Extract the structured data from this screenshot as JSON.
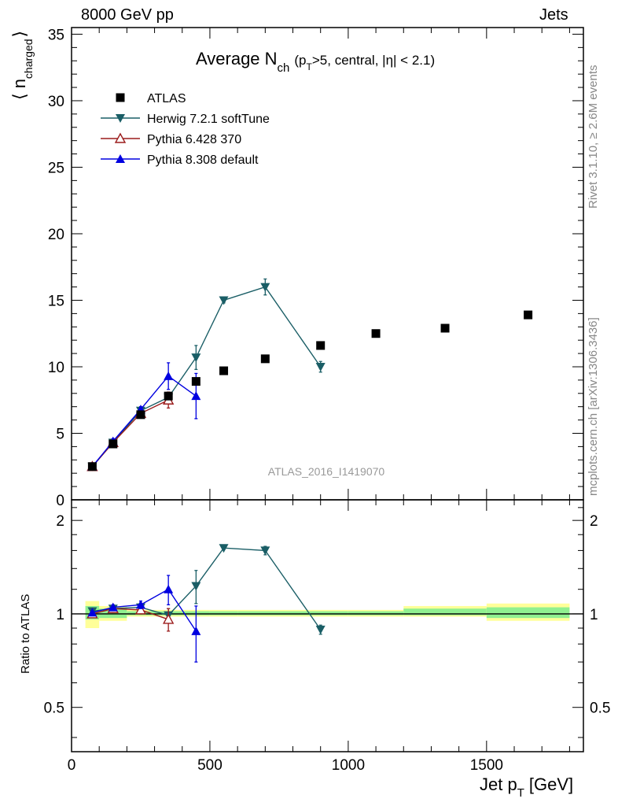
{
  "header": {
    "left": "8000 GeV pp",
    "right": "Jets"
  },
  "side_labels": {
    "rivet": "Rivet 3.1.10, ≥ 2.6M events",
    "mcplots": "mcplots.cern.ch [arXiv:1306.3436]"
  },
  "colors": {
    "data": "#000000",
    "herwig": "#1a5e66",
    "pythia6": "#9b1c1c",
    "pythia8": "#0000e0",
    "band_inner": "#90f090",
    "band_outer": "#ffff99"
  },
  "chart_data": [
    {
      "type": "scatter",
      "panel": "main",
      "title_main": "Average N",
      "title_sub": "ch",
      "title_rest": "(p",
      "title_rest_sub": "T",
      "title_rest2": ">5, central, |η| < 2.1)",
      "ylabel_open": "⟨ n",
      "ylabel_sub": "charged",
      "ylabel_close": "⟩",
      "analysis_label": "ATLAS_2016_I1419070",
      "xlim": [
        0,
        1850
      ],
      "ylim": [
        0,
        35.5
      ],
      "yticks": [
        0,
        5,
        10,
        15,
        20,
        25,
        30,
        35
      ],
      "ytick_labels": [
        "0",
        "5",
        "10",
        "15",
        "20",
        "25",
        "30",
        "35"
      ],
      "legend_position": "top-left",
      "series": [
        {
          "name": "ATLAS",
          "key": "data",
          "marker": "square",
          "x": [
            75,
            150,
            250,
            350,
            450,
            550,
            700,
            900,
            1100,
            1350,
            1650
          ],
          "y": [
            2.5,
            4.2,
            6.4,
            7.8,
            8.9,
            9.7,
            10.6,
            11.6,
            12.5,
            12.9,
            13.9
          ],
          "err": [
            0.1,
            0.1,
            0.1,
            0.1,
            0.1,
            0.1,
            0.1,
            0.1,
            0.1,
            0.1,
            0.1
          ]
        },
        {
          "name": "Herwig 7.2.1 softTune",
          "key": "herwig",
          "marker": "triangle-down",
          "x": [
            75,
            150,
            250,
            350,
            450,
            550,
            700,
            900
          ],
          "y": [
            2.5,
            4.3,
            6.7,
            7.7,
            10.7,
            15.0,
            16.0,
            10.0
          ],
          "err": [
            0.1,
            0.2,
            0.2,
            0.4,
            0.9,
            0.2,
            0.6,
            0.4
          ]
        },
        {
          "name": "Pythia 6.428 370",
          "key": "pythia6",
          "marker": "triangle-up-open",
          "x": [
            75,
            150,
            250,
            350
          ],
          "y": [
            2.5,
            4.3,
            6.5,
            7.5
          ],
          "err": [
            0.1,
            0.2,
            0.2,
            0.6
          ]
        },
        {
          "name": "Pythia 8.308 default",
          "key": "pythia8",
          "marker": "triangle-up",
          "x": [
            75,
            150,
            250,
            350,
            450
          ],
          "y": [
            2.5,
            4.4,
            6.8,
            9.3,
            7.8
          ],
          "err": [
            0.1,
            0.2,
            0.2,
            1.0,
            1.7
          ]
        }
      ]
    },
    {
      "type": "scatter",
      "panel": "ratio",
      "ylabel": "Ratio to ATLAS",
      "xlabel": "Jet p",
      "xlabel_sub": "T",
      "xlabel_unit": "[GeV]",
      "xlim": [
        0,
        1850
      ],
      "ylim": [
        0.36,
        2.33
      ],
      "xticks": [
        0,
        500,
        1000,
        1500
      ],
      "xtick_labels": [
        "0",
        "500",
        "1000",
        "1500"
      ],
      "yticks": [
        0.5,
        1,
        2
      ],
      "ytick_labels": [
        "0.5",
        "1",
        "2"
      ],
      "bands": [
        {
          "x0": 50,
          "x1": 100,
          "inner": [
            0.96,
            1.06
          ],
          "outer": [
            0.9,
            1.1
          ]
        },
        {
          "x0": 100,
          "x1": 200,
          "inner": [
            0.97,
            1.04
          ],
          "outer": [
            0.95,
            1.06
          ]
        },
        {
          "x0": 200,
          "x1": 300,
          "inner": [
            0.99,
            1.02
          ],
          "outer": [
            0.98,
            1.03
          ]
        },
        {
          "x0": 300,
          "x1": 400,
          "inner": [
            0.99,
            1.02
          ],
          "outer": [
            0.98,
            1.03
          ]
        },
        {
          "x0": 400,
          "x1": 500,
          "inner": [
            0.99,
            1.02
          ],
          "outer": [
            0.98,
            1.03
          ]
        },
        {
          "x0": 500,
          "x1": 600,
          "inner": [
            0.99,
            1.02
          ],
          "outer": [
            0.98,
            1.03
          ]
        },
        {
          "x0": 600,
          "x1": 800,
          "inner": [
            0.99,
            1.02
          ],
          "outer": [
            0.98,
            1.03
          ]
        },
        {
          "x0": 800,
          "x1": 1000,
          "inner": [
            0.99,
            1.02
          ],
          "outer": [
            0.98,
            1.03
          ]
        },
        {
          "x0": 1000,
          "x1": 1200,
          "inner": [
            0.99,
            1.02
          ],
          "outer": [
            0.98,
            1.03
          ]
        },
        {
          "x0": 1200,
          "x1": 1500,
          "inner": [
            0.99,
            1.04
          ],
          "outer": [
            0.98,
            1.06
          ]
        },
        {
          "x0": 1500,
          "x1": 1800,
          "inner": [
            0.97,
            1.05
          ],
          "outer": [
            0.95,
            1.08
          ]
        }
      ],
      "series": [
        {
          "name": "Herwig 7.2.1 softTune",
          "key": "herwig",
          "marker": "triangle-down",
          "x": [
            75,
            150,
            250,
            350,
            450,
            550,
            700,
            900
          ],
          "y": [
            1.02,
            1.04,
            1.05,
            0.99,
            1.23,
            1.63,
            1.6,
            0.89
          ],
          "err": [
            0.01,
            0.02,
            0.03,
            0.05,
            0.15,
            0.02,
            0.05,
            0.03
          ]
        },
        {
          "name": "Pythia 6.428 370",
          "key": "pythia6",
          "marker": "triangle-up-open",
          "x": [
            75,
            150,
            250,
            350
          ],
          "y": [
            1.0,
            1.04,
            1.03,
            0.96
          ],
          "err": [
            0.01,
            0.02,
            0.03,
            0.08
          ]
        },
        {
          "name": "Pythia 8.308 default",
          "key": "pythia8",
          "marker": "triangle-up",
          "x": [
            75,
            150,
            250,
            350,
            450
          ],
          "y": [
            1.01,
            1.05,
            1.07,
            1.2,
            0.88
          ],
          "err": [
            0.01,
            0.02,
            0.03,
            0.13,
            0.18
          ]
        }
      ]
    }
  ]
}
